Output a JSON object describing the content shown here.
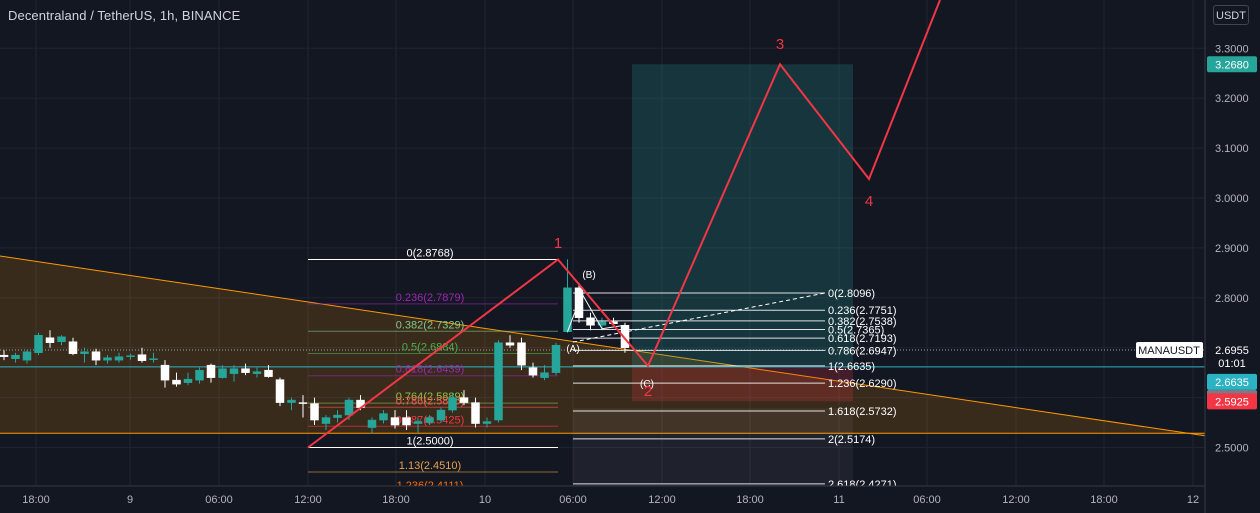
{
  "header": {
    "title": "Decentraland / TetherUS, 1h, BINANCE",
    "currency": "USDT"
  },
  "colors": {
    "background": "#131722",
    "bull_candle": "#26a69a",
    "bear_candle": "#ffffff",
    "wave": "#f23645",
    "channel": "#ff9800",
    "take_profit_zone": "#26a69a",
    "stop_zone": "#f23645"
  },
  "chart_data": {
    "type": "candlestick",
    "symbol": "MANAUSDT",
    "interval": "1h",
    "ylim": [
      2.4,
      3.42
    ],
    "y_ticks": [
      "2.5000",
      "2.6000",
      "2.7000",
      "2.8000",
      "2.9000",
      "3.0000",
      "3.1000",
      "3.2000",
      "3.3000"
    ],
    "x_ticks": [
      "18:00",
      "9",
      "06:00",
      "12:00",
      "18:00",
      "10",
      "06:00",
      "12:00",
      "18:00",
      "11",
      "06:00",
      "12:00",
      "18:00",
      "12"
    ],
    "candles": [
      {
        "o": 2.685,
        "h": 2.695,
        "l": 2.675,
        "c": 2.682
      },
      {
        "o": 2.678,
        "h": 2.69,
        "l": 2.67,
        "c": 2.685
      },
      {
        "o": 2.675,
        "h": 2.695,
        "l": 2.668,
        "c": 2.692
      },
      {
        "o": 2.69,
        "h": 2.73,
        "l": 2.685,
        "c": 2.725
      },
      {
        "o": 2.72,
        "h": 2.735,
        "l": 2.7,
        "c": 2.71
      },
      {
        "o": 2.712,
        "h": 2.725,
        "l": 2.705,
        "c": 2.722
      },
      {
        "o": 2.712,
        "h": 2.72,
        "l": 2.685,
        "c": 2.688
      },
      {
        "o": 2.688,
        "h": 2.7,
        "l": 2.67,
        "c": 2.692
      },
      {
        "o": 2.692,
        "h": 2.698,
        "l": 2.665,
        "c": 2.675
      },
      {
        "o": 2.675,
        "h": 2.685,
        "l": 2.668,
        "c": 2.68
      },
      {
        "o": 2.675,
        "h": 2.69,
        "l": 2.67,
        "c": 2.682
      },
      {
        "o": 2.682,
        "h": 2.688,
        "l": 2.676,
        "c": 2.684
      },
      {
        "o": 2.686,
        "h": 2.7,
        "l": 2.67,
        "c": 2.674
      },
      {
        "o": 2.676,
        "h": 2.69,
        "l": 2.67,
        "c": 2.678
      },
      {
        "o": 2.665,
        "h": 2.675,
        "l": 2.62,
        "c": 2.635
      },
      {
        "o": 2.635,
        "h": 2.65,
        "l": 2.622,
        "c": 2.627
      },
      {
        "o": 2.63,
        "h": 2.65,
        "l": 2.625,
        "c": 2.637
      },
      {
        "o": 2.635,
        "h": 2.66,
        "l": 2.628,
        "c": 2.655
      },
      {
        "o": 2.665,
        "h": 2.668,
        "l": 2.63,
        "c": 2.64
      },
      {
        "o": 2.64,
        "h": 2.665,
        "l": 2.638,
        "c": 2.658
      },
      {
        "o": 2.648,
        "h": 2.665,
        "l": 2.632,
        "c": 2.658
      },
      {
        "o": 2.658,
        "h": 2.668,
        "l": 2.645,
        "c": 2.65
      },
      {
        "o": 2.648,
        "h": 2.66,
        "l": 2.64,
        "c": 2.652
      },
      {
        "o": 2.655,
        "h": 2.665,
        "l": 2.64,
        "c": 2.642
      },
      {
        "o": 2.636,
        "h": 2.64,
        "l": 2.583,
        "c": 2.59
      },
      {
        "o": 2.59,
        "h": 2.6,
        "l": 2.575,
        "c": 2.595
      },
      {
        "o": 2.59,
        "h": 2.605,
        "l": 2.56,
        "c": 2.588
      },
      {
        "o": 2.588,
        "h": 2.6,
        "l": 2.545,
        "c": 2.555
      },
      {
        "o": 2.548,
        "h": 2.565,
        "l": 2.535,
        "c": 2.56
      },
      {
        "o": 2.56,
        "h": 2.575,
        "l": 2.55,
        "c": 2.565
      },
      {
        "o": 2.565,
        "h": 2.6,
        "l": 2.555,
        "c": 2.595
      },
      {
        "o": 2.595,
        "h": 2.605,
        "l": 2.575,
        "c": 2.58
      },
      {
        "o": 2.54,
        "h": 2.56,
        "l": 2.528,
        "c": 2.555
      },
      {
        "o": 2.555,
        "h": 2.575,
        "l": 2.548,
        "c": 2.568
      },
      {
        "o": 2.56,
        "h": 2.575,
        "l": 2.538,
        "c": 2.545
      },
      {
        "o": 2.56,
        "h": 2.575,
        "l": 2.535,
        "c": 2.545
      },
      {
        "o": 2.548,
        "h": 2.56,
        "l": 2.53,
        "c": 2.552
      },
      {
        "o": 2.55,
        "h": 2.565,
        "l": 2.545,
        "c": 2.56
      },
      {
        "o": 2.555,
        "h": 2.58,
        "l": 2.55,
        "c": 2.575
      },
      {
        "o": 2.575,
        "h": 2.61,
        "l": 2.57,
        "c": 2.6
      },
      {
        "o": 2.6,
        "h": 2.615,
        "l": 2.585,
        "c": 2.59
      },
      {
        "o": 2.59,
        "h": 2.6,
        "l": 2.54,
        "c": 2.548
      },
      {
        "o": 2.548,
        "h": 2.56,
        "l": 2.54,
        "c": 2.552
      },
      {
        "o": 2.555,
        "h": 2.715,
        "l": 2.55,
        "c": 2.71
      },
      {
        "o": 2.71,
        "h": 2.725,
        "l": 2.7,
        "c": 2.705
      },
      {
        "o": 2.71,
        "h": 2.72,
        "l": 2.655,
        "c": 2.665
      },
      {
        "o": 2.66,
        "h": 2.67,
        "l": 2.64,
        "c": 2.645
      },
      {
        "o": 2.64,
        "h": 2.665,
        "l": 2.635,
        "c": 2.65
      },
      {
        "o": 2.65,
        "h": 2.71,
        "l": 2.645,
        "c": 2.705
      },
      {
        "o": 2.732,
        "h": 2.877,
        "l": 2.73,
        "c": 2.82
      },
      {
        "o": 2.82,
        "h": 2.83,
        "l": 2.75,
        "c": 2.76
      },
      {
        "o": 2.76,
        "h": 2.77,
        "l": 2.735,
        "c": 2.745
      },
      {
        "o": 2.745,
        "h": 2.76,
        "l": 2.735,
        "c": 2.752
      },
      {
        "o": 2.752,
        "h": 2.76,
        "l": 2.745,
        "c": 2.748
      },
      {
        "o": 2.745,
        "h": 2.75,
        "l": 2.69,
        "c": 2.7
      }
    ],
    "fib_retracement": {
      "start_price": 2.8768,
      "end_price": 2.5,
      "labels": [
        "0(2.8768)",
        "0.236(2.7879)",
        "0.382(2.7329)",
        "0.5(2.6884)",
        "0.618(2.6439)",
        "0.764(2.5889)",
        "0.786(2.5806)",
        "0.887(2.5425)",
        "1(2.5000)",
        "1.13(2.4510)",
        "1.236(2.4111)"
      ],
      "prices": [
        2.8768,
        2.7879,
        2.7329,
        2.6884,
        2.6439,
        2.5889,
        2.5806,
        2.5425,
        2.5,
        2.451,
        2.4111
      ]
    },
    "fib_extension": {
      "labels": [
        "0(2.8096)",
        "0.236(2.7751)",
        "0.382(2.7538)",
        "0.5(2.7365)",
        "0.618(2.7193)",
        "0.786(2.6947)",
        "1(2.6635)",
        "1.236(2.6290)",
        "1.618(2.5732)",
        "2(2.5174)",
        "2.618(2.4271)"
      ],
      "prices": [
        2.8096,
        2.7751,
        2.7538,
        2.7365,
        2.7193,
        2.6947,
        2.6635,
        2.629,
        2.5732,
        2.5174,
        2.4271
      ]
    },
    "elliott_wave": {
      "labels": [
        "1",
        "2",
        "3",
        "4"
      ],
      "prices": [
        2.8768,
        2.6635,
        3.268,
        3.038
      ]
    },
    "abc_labels": [
      "(A)",
      "(B)",
      "(C)"
    ],
    "position": {
      "entry": 2.6635,
      "target": 3.268,
      "stop": 2.5925
    },
    "price_labels": {
      "symbol_tag": "MANAUSDT",
      "last_price": "2.6955",
      "countdown": "01:01",
      "entry": "2.6635",
      "entry2": "2.6635",
      "stop": "2.5925",
      "target": "3.2680"
    }
  }
}
